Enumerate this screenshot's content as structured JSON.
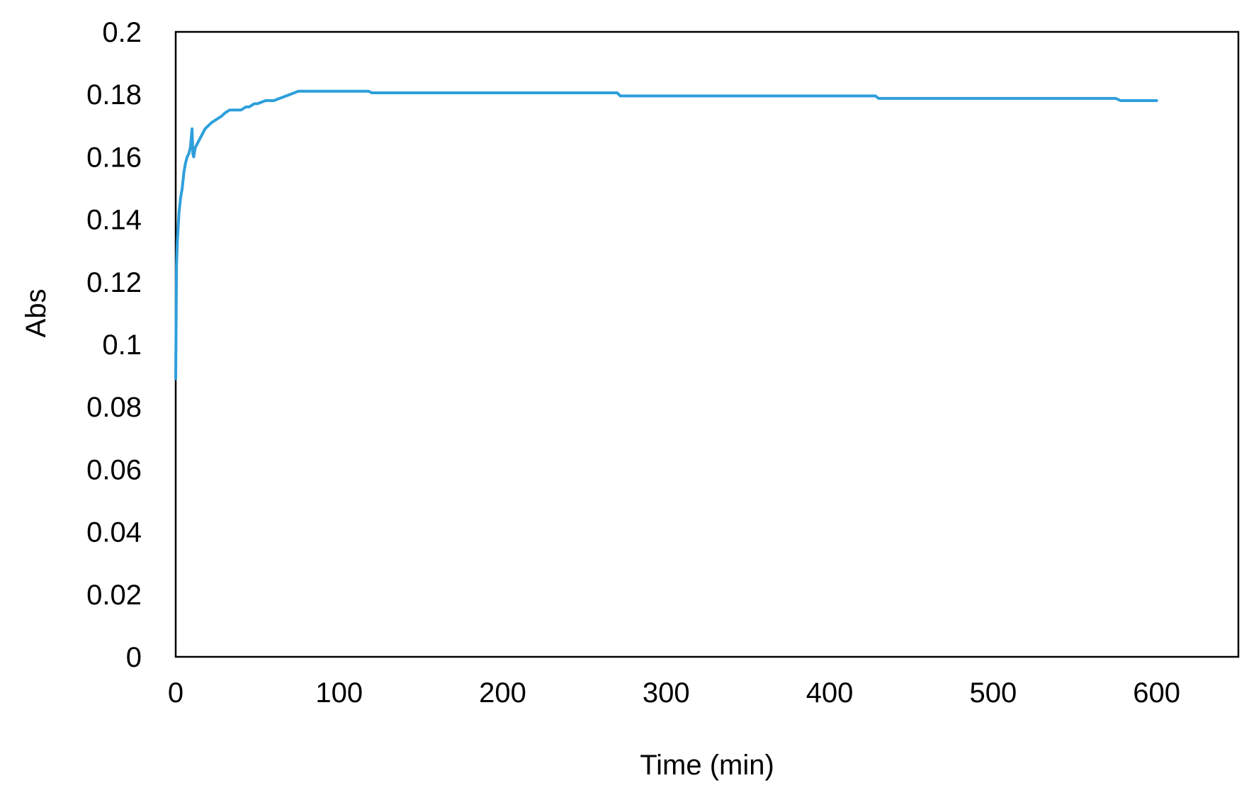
{
  "chart_data": {
    "type": "line",
    "title": "",
    "xlabel": "Time (min)",
    "ylabel": "Abs",
    "xlim": [
      0,
      650
    ],
    "ylim": [
      0,
      0.2
    ],
    "x_ticks": [
      0,
      100,
      200,
      300,
      400,
      500,
      600
    ],
    "x_tick_labels": [
      "0",
      "100",
      "200",
      "300",
      "400",
      "500",
      "600"
    ],
    "y_ticks": [
      0,
      0.02,
      0.04,
      0.06,
      0.08,
      0.1,
      0.12,
      0.14,
      0.16,
      0.18,
      0.2
    ],
    "y_tick_labels": [
      "0",
      "0.02",
      "0.04",
      "0.06",
      "0.08",
      "0.1",
      "0.12",
      "0.14",
      "0.16",
      "0.18",
      "0.2"
    ],
    "grid": false,
    "legend": "none",
    "series": [
      {
        "color": "#2E9FDB",
        "x": [
          0,
          0.5,
          1,
          2,
          3,
          4,
          5,
          6,
          7,
          8,
          9,
          10,
          10.5,
          11,
          12,
          14,
          16,
          18,
          20,
          22,
          25,
          28,
          30,
          33,
          35,
          38,
          40,
          43,
          45,
          48,
          50,
          55,
          60,
          65,
          70,
          75,
          80,
          90,
          100,
          110,
          118,
          120,
          150,
          200,
          250,
          270,
          272,
          300,
          350,
          400,
          428,
          430,
          450,
          500,
          550,
          575,
          578,
          600
        ],
        "y": [
          0.089,
          0.125,
          0.133,
          0.142,
          0.147,
          0.15,
          0.155,
          0.158,
          0.16,
          0.161,
          0.163,
          0.169,
          0.161,
          0.16,
          0.163,
          0.165,
          0.167,
          0.169,
          0.17,
          0.171,
          0.172,
          0.173,
          0.174,
          0.175,
          0.175,
          0.175,
          0.175,
          0.176,
          0.176,
          0.177,
          0.177,
          0.178,
          0.178,
          0.179,
          0.18,
          0.181,
          0.181,
          0.181,
          0.181,
          0.181,
          0.181,
          0.1805,
          0.1805,
          0.1805,
          0.1805,
          0.1805,
          0.1795,
          0.1795,
          0.1795,
          0.1795,
          0.1795,
          0.1787,
          0.1787,
          0.1787,
          0.1787,
          0.1787,
          0.178,
          0.178
        ]
      }
    ]
  }
}
